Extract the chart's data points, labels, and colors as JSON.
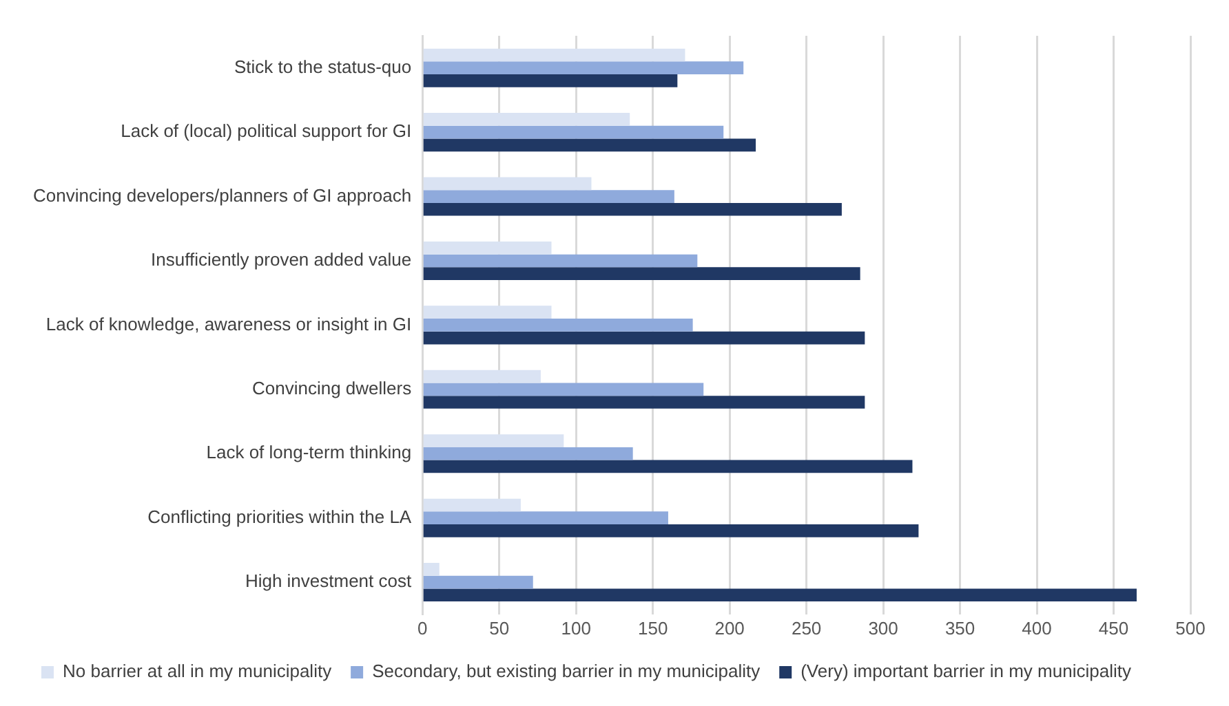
{
  "chart_data": {
    "type": "bar",
    "orientation": "horizontal",
    "categories": [
      "Stick to the status-quo",
      "Lack of (local) political support for GI",
      "Convincing developers/planners of GI approach",
      "Insufficiently proven added value",
      "Lack of knowledge, awareness or insight in GI",
      "Convincing dwellers",
      "Lack of long-term thinking",
      "Conflicting priorities within the LA",
      "High investment cost"
    ],
    "series": [
      {
        "name": "No barrier at all in my municipality",
        "color": "#dae3f3",
        "values": [
          171,
          135,
          110,
          84,
          84,
          77,
          92,
          64,
          11
        ]
      },
      {
        "name": "Secondary, but existing barrier in my municipality",
        "color": "#8faadc",
        "values": [
          209,
          196,
          164,
          179,
          176,
          183,
          137,
          160,
          72
        ]
      },
      {
        "name": "(Very) important barrier in my municipality",
        "color": "#203864",
        "values": [
          166,
          217,
          273,
          285,
          288,
          288,
          319,
          323,
          465
        ]
      }
    ],
    "xlim": [
      0,
      500
    ],
    "xticks": [
      0,
      50,
      100,
      150,
      200,
      250,
      300,
      350,
      400,
      450,
      500
    ],
    "grid": "x",
    "legend": "bottom"
  }
}
